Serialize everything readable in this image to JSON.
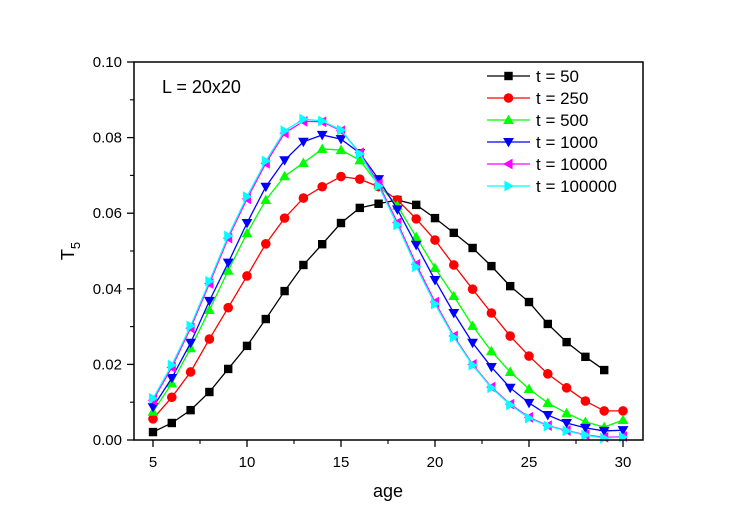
{
  "chart_data": {
    "type": "line",
    "title": "",
    "annotation": "L = 20x20",
    "xlabel": "age",
    "ylabel": "T",
    "ylabel_subscript": "5",
    "xlim": [
      4,
      31.1
    ],
    "ylim": [
      0.0,
      0.1
    ],
    "xticks": [
      5,
      10,
      15,
      20,
      25,
      30
    ],
    "xtick_labels": [
      "5",
      "10",
      "15",
      "20",
      "25",
      "30"
    ],
    "yticks": [
      0.0,
      0.02,
      0.04,
      0.06,
      0.08,
      0.1
    ],
    "ytick_labels": [
      "0.00",
      "0.02",
      "0.04",
      "0.06",
      "0.08",
      "0.10"
    ],
    "grid": false,
    "legend_position": "upper right",
    "series": [
      {
        "name": "t = 50",
        "color": "#000000",
        "marker": "square",
        "x": [
          5,
          6,
          7,
          8,
          9,
          10,
          11,
          12,
          13,
          14,
          15,
          16,
          17,
          18,
          19,
          20,
          21,
          22,
          23,
          24,
          25,
          26,
          27,
          28,
          29
        ],
        "values": [
          0.0021,
          0.0045,
          0.0079,
          0.0127,
          0.0188,
          0.0249,
          0.032,
          0.0394,
          0.0463,
          0.0518,
          0.0574,
          0.0614,
          0.0625,
          0.0635,
          0.0622,
          0.0587,
          0.0548,
          0.0508,
          0.046,
          0.0407,
          0.0365,
          0.0307,
          0.0259,
          0.022,
          0.0185
        ]
      },
      {
        "name": "t = 250",
        "color": "#ff0000",
        "marker": "circle",
        "x": [
          5,
          6,
          7,
          8,
          9,
          10,
          11,
          12,
          13,
          14,
          15,
          16,
          17,
          18,
          19,
          20,
          21,
          22,
          23,
          24,
          25,
          26,
          27,
          28,
          29,
          30
        ],
        "values": [
          0.0056,
          0.0113,
          0.018,
          0.0267,
          0.035,
          0.0434,
          0.0519,
          0.0587,
          0.064,
          0.067,
          0.0697,
          0.069,
          0.067,
          0.0635,
          0.0585,
          0.0529,
          0.0463,
          0.0399,
          0.0336,
          0.0275,
          0.0222,
          0.0175,
          0.0138,
          0.0103,
          0.0077,
          0.0077
        ]
      },
      {
        "name": "t = 500",
        "color": "#00ff00",
        "marker": "triangle-up",
        "x": [
          5,
          6,
          7,
          8,
          9,
          10,
          11,
          12,
          13,
          14,
          15,
          16,
          17,
          18,
          19,
          20,
          21,
          22,
          23,
          24,
          25,
          26,
          27,
          28,
          29,
          30
        ],
        "values": [
          0.0075,
          0.015,
          0.0243,
          0.0344,
          0.0448,
          0.0547,
          0.0635,
          0.0698,
          0.0733,
          0.077,
          0.0767,
          0.074,
          0.0675,
          0.062,
          0.0537,
          0.0455,
          0.0381,
          0.0302,
          0.0235,
          0.018,
          0.0135,
          0.0098,
          0.0071,
          0.0048,
          0.0034,
          0.0053
        ]
      },
      {
        "name": "t = 1000",
        "color": "#0000ff",
        "marker": "triangle-down",
        "x": [
          5,
          6,
          7,
          8,
          9,
          10,
          11,
          12,
          13,
          14,
          15,
          16,
          17,
          18,
          19,
          20,
          21,
          22,
          23,
          24,
          25,
          26,
          27,
          28,
          29,
          30
        ],
        "values": [
          0.0087,
          0.0164,
          0.0257,
          0.0368,
          0.0469,
          0.0574,
          0.067,
          0.074,
          0.0789,
          0.0807,
          0.0796,
          0.0759,
          0.069,
          0.061,
          0.0516,
          0.0423,
          0.0336,
          0.0257,
          0.0193,
          0.0138,
          0.0098,
          0.0066,
          0.0045,
          0.0032,
          0.0024,
          0.0026
        ]
      },
      {
        "name": "t = 10000",
        "color": "#ff00ff",
        "marker": "triangle-left",
        "x": [
          5,
          6,
          7,
          8,
          9,
          10,
          11,
          12,
          13,
          14,
          15,
          16,
          17,
          18,
          19,
          20,
          21,
          22,
          23,
          24,
          25,
          26,
          27,
          28,
          29,
          30
        ],
        "values": [
          0.0105,
          0.0192,
          0.0296,
          0.0414,
          0.0534,
          0.0638,
          0.0732,
          0.0812,
          0.0843,
          0.0842,
          0.0818,
          0.076,
          0.0678,
          0.0575,
          0.0465,
          0.0365,
          0.0275,
          0.02,
          0.014,
          0.0095,
          0.006,
          0.0038,
          0.0025,
          0.0014,
          0.0007,
          0.0009
        ]
      },
      {
        "name": "t = 100000",
        "color": "#00ffff",
        "marker": "triangle-right",
        "x": [
          5,
          6,
          7,
          8,
          9,
          10,
          11,
          12,
          13,
          14,
          15,
          16,
          17,
          18,
          19,
          20,
          21,
          22,
          23,
          24,
          25,
          26,
          27,
          28,
          29,
          30
        ],
        "values": [
          0.011,
          0.0198,
          0.0302,
          0.042,
          0.054,
          0.0644,
          0.0738,
          0.0818,
          0.0849,
          0.0844,
          0.082,
          0.0757,
          0.0672,
          0.0569,
          0.0458,
          0.036,
          0.0272,
          0.0198,
          0.0138,
          0.0093,
          0.0058,
          0.0037,
          0.0024,
          0.0013,
          0.0005,
          0.0008
        ]
      }
    ]
  }
}
